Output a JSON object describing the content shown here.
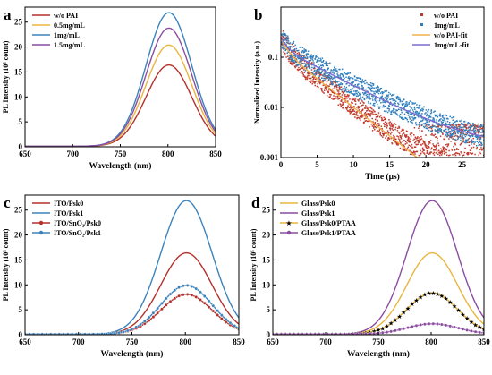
{
  "chart_data": [
    {
      "type": "line",
      "panel_label": "a",
      "xlabel": "Wavelength (nm)",
      "ylabel": "PL Intensity (10⁵ count)",
      "xlim": [
        650,
        850
      ],
      "ylim": [
        0,
        28
      ],
      "xticks": [
        650,
        700,
        750,
        800,
        850
      ],
      "yticks": [
        0,
        5,
        10,
        15,
        20,
        25
      ],
      "legend_position": "top-left",
      "series": [
        {
          "name": "w/o PAI",
          "color": "#b5302a",
          "marker": "none",
          "peak_x": 801,
          "peak_y": 16.3,
          "width": 24,
          "baseline": 0.1
        },
        {
          "name": "0.5mg/mL",
          "color": "#eab53c",
          "marker": "none",
          "peak_x": 801,
          "peak_y": 20.3,
          "width": 24,
          "baseline": 0.1
        },
        {
          "name": "1mg/mL",
          "color": "#3c83bb",
          "marker": "none",
          "peak_x": 801,
          "peak_y": 26.8,
          "width": 24,
          "baseline": 0.1
        },
        {
          "name": "1.5mg/mL",
          "color": "#8b4da0",
          "marker": "none",
          "peak_x": 801,
          "peak_y": 23.7,
          "width": 24,
          "baseline": 0.1
        }
      ]
    },
    {
      "type": "scatter",
      "panel_label": "b",
      "xlabel": "Time (μs)",
      "ylabel": "Normalized Intensity (a.u.)",
      "xlim": [
        0,
        28
      ],
      "ylim": [
        0.001,
        1
      ],
      "yscale": "log",
      "xticks": [
        0,
        5,
        10,
        15,
        20,
        25
      ],
      "yticks": [
        0.001,
        0.01,
        0.1
      ],
      "ytick_labels": [
        "0.001",
        "0.01",
        "0.1"
      ],
      "legend_position": "top-right",
      "series": [
        {
          "name": "w/o PAI",
          "kind": "scatter",
          "color": "#c0392b",
          "A1": 0.1,
          "t1": 0.8,
          "A2": 0.14,
          "t2": 3.8,
          "floor": 0.0006,
          "noise": 0.22
        },
        {
          "name": "1mg/mL",
          "kind": "scatter",
          "color": "#2f7fbd",
          "A1": 0.1,
          "t1": 0.8,
          "A2": 0.15,
          "t2": 5.7,
          "floor": 0.0015,
          "noise": 0.22
        },
        {
          "name": "w/o PAI-fit",
          "kind": "line",
          "color": "#f0b04a",
          "A1": 0.1,
          "t1": 0.8,
          "A2": 0.14,
          "t2": 3.8,
          "floor": 0
        },
        {
          "name": "1mg/mL-fit",
          "kind": "line",
          "color": "#7a6bd0",
          "A1": 0.1,
          "t1": 0.8,
          "A2": 0.15,
          "t2": 5.7,
          "floor": 0.0015
        }
      ]
    },
    {
      "type": "line",
      "panel_label": "c",
      "xlabel": "Wavelength (nm)",
      "ylabel": "PL Intensity (10⁵ count)",
      "xlim": [
        650,
        850
      ],
      "ylim": [
        0,
        28
      ],
      "xticks": [
        650,
        700,
        750,
        800,
        850
      ],
      "yticks": [
        0,
        5,
        10,
        15,
        20,
        25
      ],
      "legend_position": "top-left",
      "series": [
        {
          "name": "ITO/Psk0",
          "color": "#b5302a",
          "marker": "none",
          "peak_x": 801,
          "peak_y": 16.3,
          "width": 24,
          "baseline": 0.1
        },
        {
          "name": "ITO/Psk1",
          "color": "#3c83bb",
          "marker": "none",
          "peak_x": 801,
          "peak_y": 26.8,
          "width": 24,
          "baseline": 0.1
        },
        {
          "name": "ITO/SnO₂/Psk0",
          "color": "#b5302a",
          "marker": "circle",
          "peak_x": 801,
          "peak_y": 8.0,
          "width": 24,
          "baseline": 0.1
        },
        {
          "name": "ITO/SnO₂/Psk1",
          "color": "#3c83bb",
          "marker": "circle",
          "peak_x": 801,
          "peak_y": 9.8,
          "width": 24,
          "baseline": 0.1
        }
      ]
    },
    {
      "type": "line",
      "panel_label": "d",
      "xlabel": "Wavelength (nm)",
      "ylabel": "PL Intensity (10⁵ count)",
      "xlim": [
        650,
        850
      ],
      "ylim": [
        0,
        28
      ],
      "xticks": [
        650,
        700,
        750,
        800,
        850
      ],
      "yticks": [
        0,
        5,
        10,
        15,
        20,
        25
      ],
      "legend_position": "top-left",
      "series": [
        {
          "name": "Glass/Psk0",
          "color": "#eab53c",
          "marker": "none",
          "peak_x": 801,
          "peak_y": 16.3,
          "width": 24,
          "baseline": 0.1
        },
        {
          "name": "Glass/Psk1",
          "color": "#8b4da0",
          "marker": "none",
          "peak_x": 801,
          "peak_y": 26.8,
          "width": 24,
          "baseline": 0.1
        },
        {
          "name": "Glass/Psk0/PTAA",
          "color": "#eab53c",
          "marker": "star",
          "peak_x": 801,
          "peak_y": 8.3,
          "width": 24,
          "baseline": 0.1
        },
        {
          "name": "Glass/Psk1/PTAA",
          "color": "#8b4da0",
          "marker": "circle",
          "peak_x": 801,
          "peak_y": 2.1,
          "width": 24,
          "baseline": 0.1
        }
      ]
    }
  ]
}
